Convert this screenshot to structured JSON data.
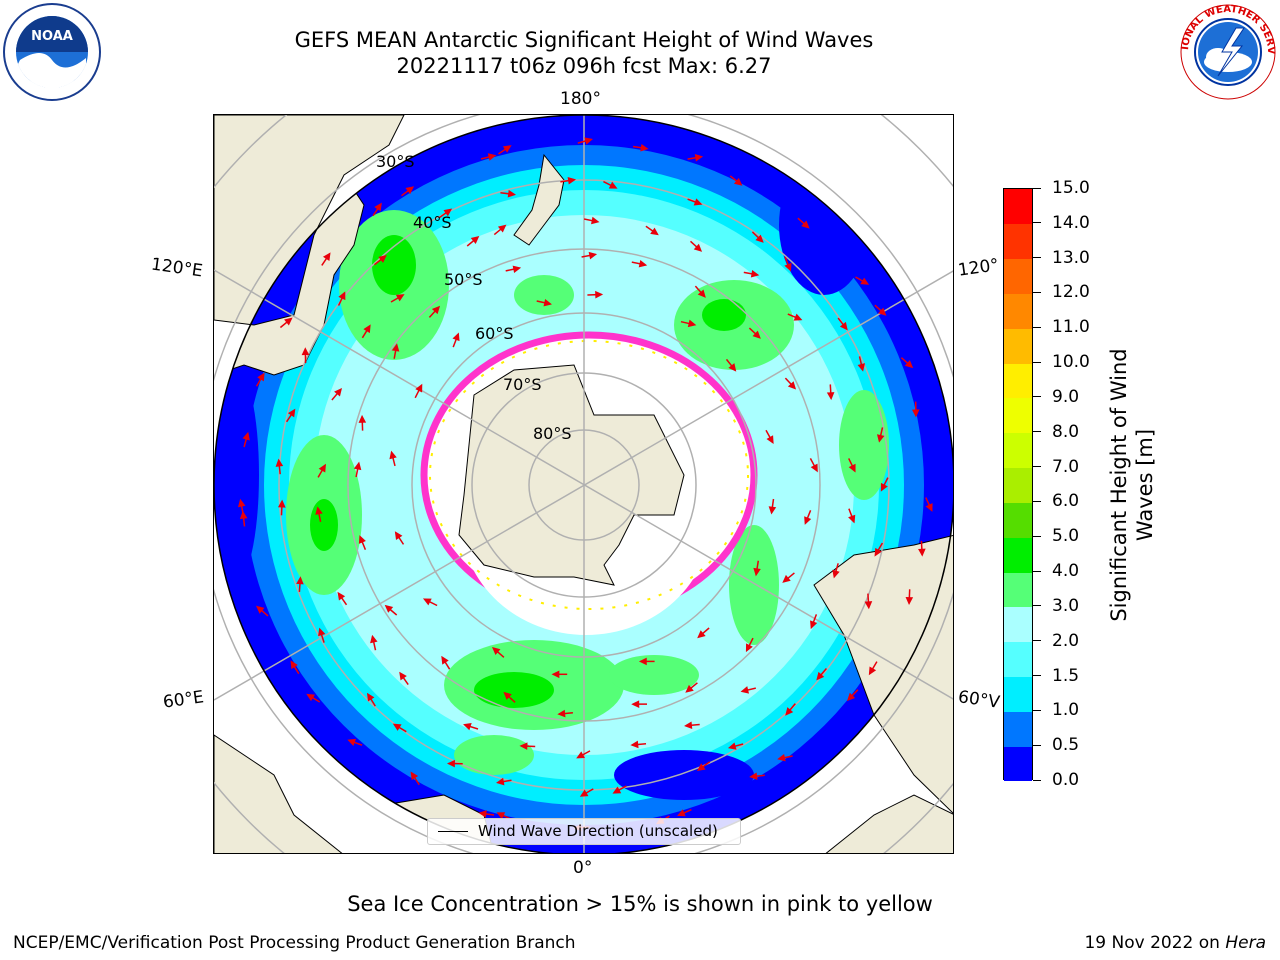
{
  "title": {
    "line1": "GEFS MEAN Antarctic Significant Height of Wind Waves",
    "line2": "20221117 t06z 096h fcst   Max: 6.27"
  },
  "logos": {
    "left": "noaa-logo",
    "right": "national-weather-service-logo"
  },
  "map": {
    "projection": "south-polar-stereographic",
    "longitude_labels": {
      "top": "180°",
      "bottom": "0°",
      "upper_left": "120°E",
      "lower_left": "60°E",
      "upper_right": "120°",
      "lower_right": "60°V"
    },
    "latitude_labels": [
      "30°S",
      "40°S",
      "50°S",
      "60°S",
      "70°S",
      "80°S"
    ],
    "colors": {
      "land": "#eeebd8",
      "ice": "#ffffff",
      "grid": "#b0b0b0",
      "arrow": "#e8000b",
      "ice_edge": "#ff33cc"
    }
  },
  "legend": {
    "label": "Wind Wave Direction (unscaled)"
  },
  "colorbar": {
    "label": "Significant Height of Wind Waves [m]",
    "ticks": [
      "0.0",
      "0.5",
      "1.0",
      "1.5",
      "2.0",
      "3.0",
      "4.0",
      "5.0",
      "6.0",
      "7.0",
      "8.0",
      "9.0",
      "10.0",
      "11.0",
      "12.0",
      "13.0",
      "14.0",
      "15.0"
    ],
    "colors": [
      "#0000ff",
      "#0077ff",
      "#00eeff",
      "#55ffff",
      "#aaffff",
      "#55ff77",
      "#00ee00",
      "#55dd00",
      "#aaee00",
      "#ccff00",
      "#eeff00",
      "#ffee00",
      "#ffbb00",
      "#ff8800",
      "#ff6600",
      "#ff3300",
      "#ff0000"
    ]
  },
  "note": "Sea Ice Concentration > 15% is shown in pink to yellow",
  "footer": {
    "left": "NCEP/EMC/Verification Post Processing Product Generation Branch",
    "right_date": "19 Nov 2022 on ",
    "right_machine": "Hera"
  }
}
